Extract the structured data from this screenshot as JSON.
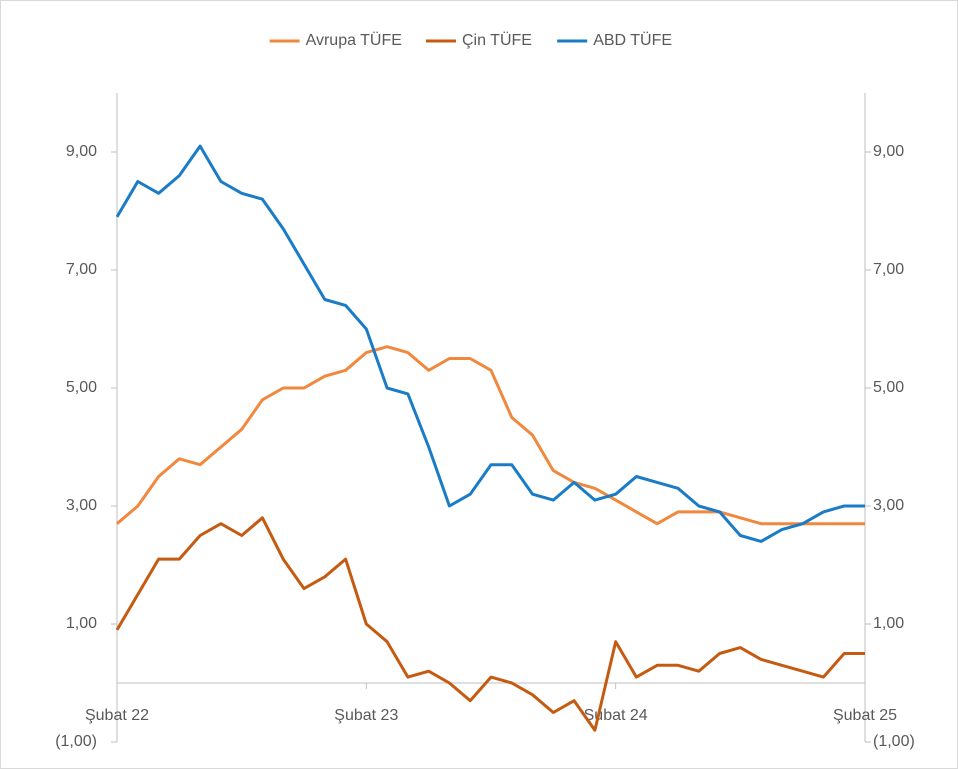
{
  "chart_data": {
    "type": "line",
    "categories": [
      "Şubat 22",
      null,
      null,
      null,
      null,
      null,
      null,
      null,
      null,
      null,
      null,
      null,
      "Şubat 23",
      null,
      null,
      null,
      null,
      null,
      null,
      null,
      null,
      null,
      null,
      null,
      "Şubat 24",
      null,
      null,
      null,
      null,
      null,
      null,
      null,
      null,
      null,
      null,
      null,
      "Şubat 25"
    ],
    "series": [
      {
        "name": "Avrupa TÜFE",
        "color": "#f0883e",
        "values": [
          2.7,
          3.0,
          3.5,
          3.8,
          3.7,
          4.0,
          4.3,
          4.8,
          5.0,
          5.0,
          5.2,
          5.3,
          5.6,
          5.7,
          5.6,
          5.3,
          5.5,
          5.5,
          5.3,
          4.5,
          4.2,
          3.6,
          3.4,
          3.3,
          3.1,
          2.9,
          2.7,
          2.9,
          2.9,
          2.9,
          2.8,
          2.7,
          2.7,
          2.7,
          2.7,
          2.7,
          2.7
        ]
      },
      {
        "name": "Çin TÜFE",
        "color": "#c55a11",
        "values": [
          0.9,
          1.5,
          2.1,
          2.1,
          2.5,
          2.7,
          2.5,
          2.8,
          2.1,
          1.6,
          1.8,
          2.1,
          1.0,
          0.7,
          0.1,
          0.2,
          0.0,
          -0.3,
          0.1,
          0.0,
          -0.2,
          -0.5,
          -0.3,
          -0.8,
          0.7,
          0.1,
          0.3,
          0.3,
          0.2,
          0.5,
          0.6,
          0.4,
          0.3,
          0.2,
          0.1,
          0.5,
          0.5
        ]
      },
      {
        "name": "ABD TÜFE",
        "color": "#1a7bc6",
        "values": [
          7.9,
          8.5,
          8.3,
          8.6,
          9.1,
          8.5,
          8.3,
          8.2,
          7.7,
          7.1,
          6.5,
          6.4,
          6.0,
          5.0,
          4.9,
          4.0,
          3.0,
          3.2,
          3.7,
          3.7,
          3.2,
          3.1,
          3.4,
          3.1,
          3.2,
          3.5,
          3.4,
          3.3,
          3.0,
          2.9,
          2.5,
          2.4,
          2.6,
          2.7,
          2.9,
          3.0,
          3.0
        ]
      }
    ],
    "ylim": [
      -1,
      10
    ],
    "yticks": [
      {
        "value": -1,
        "label": "(1,00)"
      },
      {
        "value": 1,
        "label": "1,00"
      },
      {
        "value": 3,
        "label": "3,00"
      },
      {
        "value": 5,
        "label": "5,00"
      },
      {
        "value": 7,
        "label": "7,00"
      },
      {
        "value": 9,
        "label": "9,00"
      }
    ],
    "y2lim": [
      -1,
      10
    ],
    "y2ticks": [
      {
        "value": -1,
        "label": "(1,00)"
      },
      {
        "value": 1,
        "label": "1,00"
      },
      {
        "value": 3,
        "label": "3,00"
      },
      {
        "value": 5,
        "label": "5,00"
      },
      {
        "value": 7,
        "label": "7,00"
      },
      {
        "value": 9,
        "label": "9,00"
      }
    ],
    "legend": "top"
  }
}
